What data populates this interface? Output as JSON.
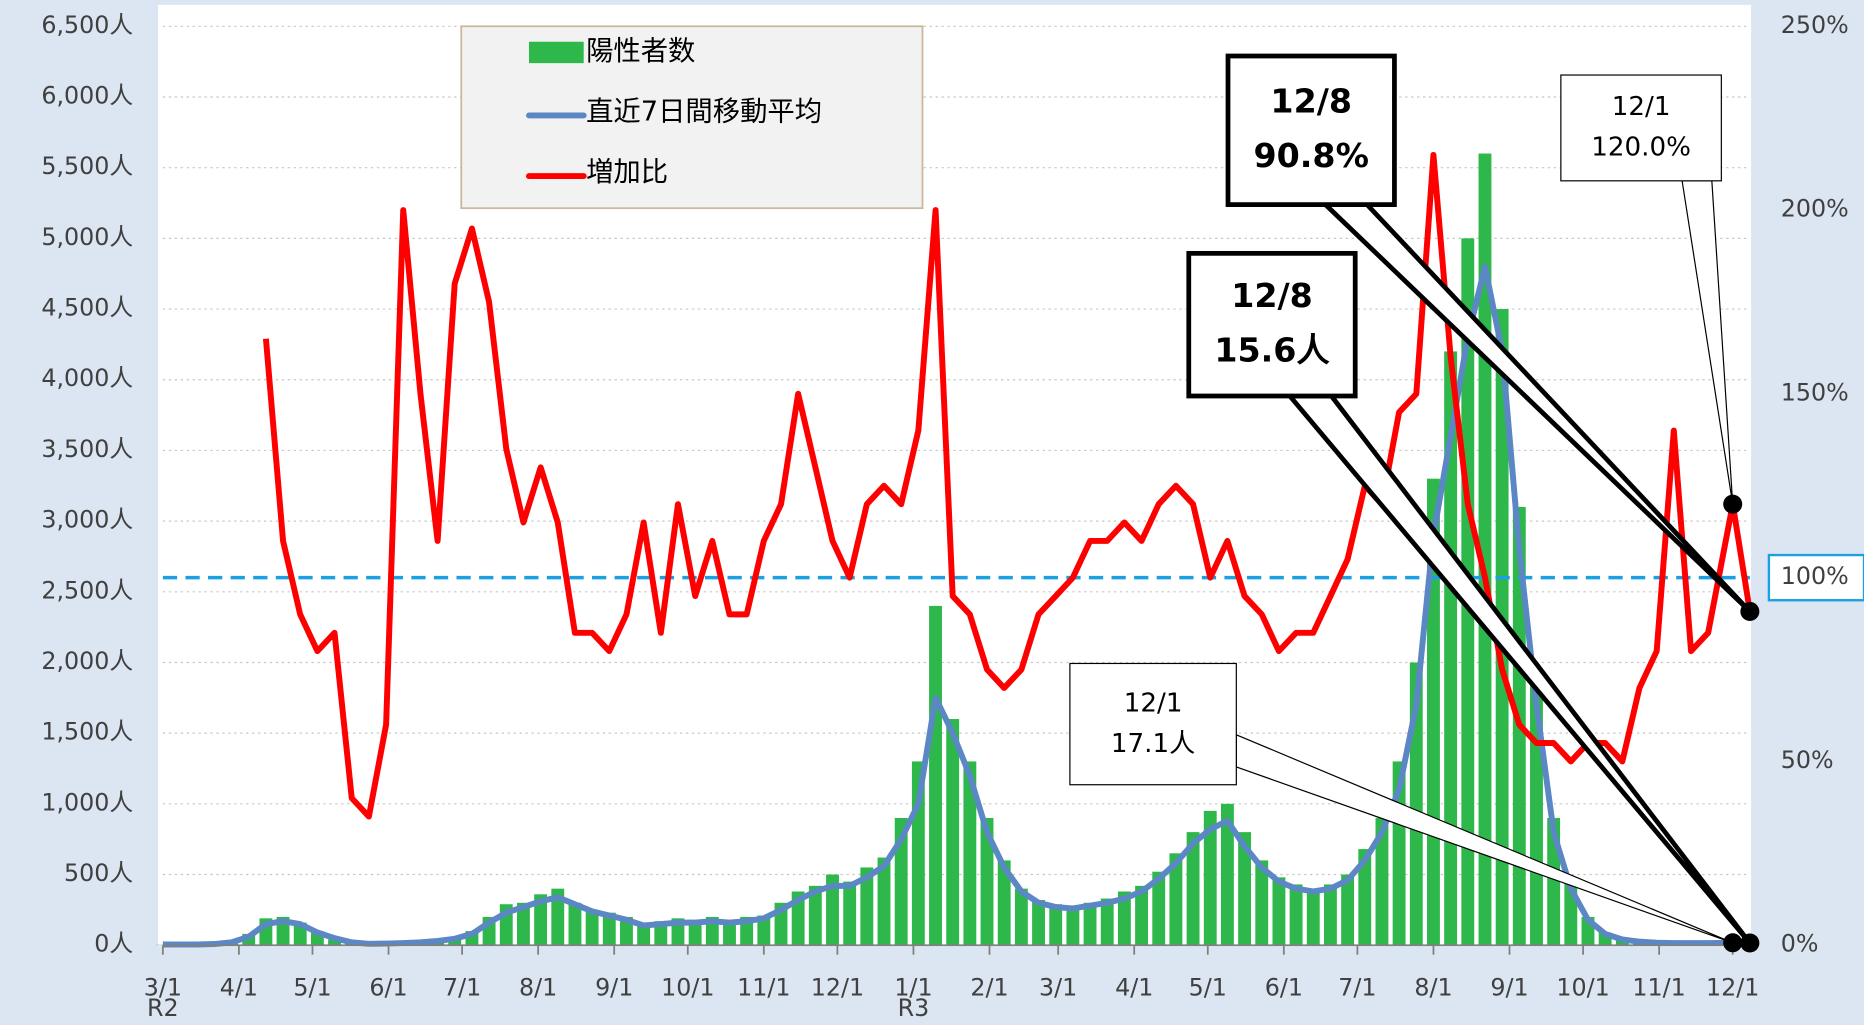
{
  "chart_data": {
    "type": "combo",
    "xlim": [
      0,
      647
    ],
    "xticks": [
      {
        "value": 0,
        "label": "3/1"
      },
      {
        "value": 31,
        "label": "4/1"
      },
      {
        "value": 61,
        "label": "5/1"
      },
      {
        "value": 92,
        "label": "6/1"
      },
      {
        "value": 122,
        "label": "7/1"
      },
      {
        "value": 153,
        "label": "8/1"
      },
      {
        "value": 184,
        "label": "9/1"
      },
      {
        "value": 214,
        "label": "10/1"
      },
      {
        "value": 245,
        "label": "11/1"
      },
      {
        "value": 275,
        "label": "12/1"
      },
      {
        "value": 306,
        "label": "1/1"
      },
      {
        "value": 337,
        "label": "2/1"
      },
      {
        "value": 365,
        "label": "3/1"
      },
      {
        "value": 396,
        "label": "4/1"
      },
      {
        "value": 426,
        "label": "5/1"
      },
      {
        "value": 457,
        "label": "6/1"
      },
      {
        "value": 487,
        "label": "7/1"
      },
      {
        "value": 518,
        "label": "8/1"
      },
      {
        "value": 549,
        "label": "9/1"
      },
      {
        "value": 579,
        "label": "10/1"
      },
      {
        "value": 610,
        "label": "11/1"
      },
      {
        "value": 640,
        "label": "12/1"
      }
    ],
    "era_labels": [
      {
        "value": 0,
        "label": "R2"
      },
      {
        "value": 306,
        "label": "R3"
      }
    ],
    "ylim": [
      0,
      6500
    ],
    "yticks": [
      {
        "value": 0,
        "label": "0人"
      },
      {
        "value": 500,
        "label": "500人"
      },
      {
        "value": 1000,
        "label": "1,000人"
      },
      {
        "value": 1500,
        "label": "1,500人"
      },
      {
        "value": 2000,
        "label": "2,000人"
      },
      {
        "value": 2500,
        "label": "2,500人"
      },
      {
        "value": 3000,
        "label": "3,000人"
      },
      {
        "value": 3500,
        "label": "3,500人"
      },
      {
        "value": 4000,
        "label": "4,000人"
      },
      {
        "value": 4500,
        "label": "4,500人"
      },
      {
        "value": 5000,
        "label": "5,000人"
      },
      {
        "value": 5500,
        "label": "5,500人"
      },
      {
        "value": 6000,
        "label": "6,000人"
      },
      {
        "value": 6500,
        "label": "6,500人"
      }
    ],
    "y2lim": [
      0,
      250
    ],
    "y2ticks": [
      {
        "value": 0,
        "label": "0%"
      },
      {
        "value": 50,
        "label": "50%"
      },
      {
        "value": 100,
        "label": "100%"
      },
      {
        "value": 150,
        "label": "150%"
      },
      {
        "value": 200,
        "label": "200%"
      },
      {
        "value": 250,
        "label": "250%"
      }
    ],
    "grid": true,
    "reference_line": {
      "axis": "y2",
      "value": 100,
      "color": "#1ba1e2"
    },
    "x": [
      0,
      7,
      14,
      21,
      28,
      35,
      42,
      49,
      56,
      63,
      70,
      77,
      84,
      91,
      98,
      105,
      112,
      119,
      126,
      133,
      140,
      147,
      154,
      161,
      168,
      175,
      182,
      189,
      196,
      203,
      210,
      217,
      224,
      231,
      238,
      245,
      252,
      259,
      266,
      273,
      280,
      287,
      294,
      301,
      308,
      315,
      322,
      329,
      336,
      343,
      350,
      357,
      364,
      371,
      378,
      385,
      392,
      399,
      406,
      413,
      420,
      427,
      434,
      441,
      448,
      455,
      462,
      469,
      476,
      483,
      490,
      497,
      504,
      511,
      518,
      525,
      532,
      539,
      546,
      553,
      560,
      567,
      574,
      581,
      588,
      595,
      602,
      609,
      616,
      623,
      630,
      640,
      647
    ],
    "series": [
      {
        "name": "陽性者数",
        "type": "bar",
        "color": "#2eb84b",
        "values": [
          3,
          5,
          6,
          10,
          25,
          80,
          190,
          200,
          160,
          100,
          40,
          15,
          10,
          20,
          20,
          25,
          35,
          60,
          100,
          200,
          290,
          300,
          360,
          400,
          300,
          250,
          230,
          200,
          150,
          170,
          190,
          180,
          200,
          170,
          200,
          210,
          300,
          380,
          420,
          500,
          450,
          550,
          620,
          900,
          1300,
          2400,
          1600,
          1300,
          900,
          600,
          400,
          320,
          290,
          280,
          300,
          330,
          380,
          420,
          520,
          650,
          800,
          950,
          1000,
          800,
          600,
          480,
          430,
          400,
          430,
          500,
          680,
          900,
          1300,
          2000,
          3300,
          4200,
          5000,
          5600,
          4500,
          3100,
          1900,
          900,
          450,
          200,
          90,
          45,
          28,
          20,
          18,
          14,
          16,
          18,
          16
        ]
      },
      {
        "name": "直近7日間移動平均",
        "type": "line",
        "color": "#5b87c5",
        "values": [
          5,
          5,
          5,
          8,
          20,
          60,
          150,
          170,
          150,
          90,
          50,
          20,
          10,
          12,
          15,
          20,
          30,
          45,
          80,
          160,
          230,
          270,
          310,
          340,
          290,
          240,
          210,
          180,
          140,
          150,
          160,
          160,
          170,
          160,
          170,
          190,
          250,
          320,
          380,
          420,
          420,
          480,
          560,
          750,
          1000,
          1750,
          1500,
          1200,
          800,
          550,
          380,
          300,
          270,
          260,
          280,
          300,
          330,
          380,
          470,
          580,
          720,
          820,
          880,
          700,
          550,
          450,
          400,
          380,
          400,
          460,
          600,
          800,
          1100,
          1700,
          2900,
          3600,
          4300,
          4800,
          4200,
          2800,
          1700,
          800,
          400,
          180,
          80,
          40,
          25,
          18,
          15,
          15,
          15,
          17.1,
          15.6
        ]
      },
      {
        "name": "増加比",
        "type": "line",
        "axis": "y2",
        "color": "#ff0000",
        "values": [
          null,
          null,
          null,
          null,
          null,
          null,
          165,
          110,
          90,
          80,
          85,
          40,
          35,
          60,
          200,
          150,
          110,
          180,
          195,
          175,
          135,
          115,
          130,
          115,
          85,
          85,
          80,
          90,
          115,
          85,
          120,
          95,
          110,
          90,
          90,
          110,
          120,
          150,
          130,
          110,
          100,
          120,
          125,
          120,
          140,
          200,
          95,
          90,
          75,
          70,
          75,
          90,
          95,
          100,
          110,
          110,
          115,
          110,
          120,
          125,
          120,
          100,
          110,
          95,
          90,
          80,
          85,
          85,
          95,
          105,
          125,
          120,
          145,
          150,
          215,
          160,
          120,
          100,
          75,
          60,
          55,
          55,
          50,
          55,
          55,
          50,
          70,
          80,
          140,
          80,
          85,
          120,
          90.8
        ]
      }
    ],
    "annotations": [
      {
        "lines": [
          "12/1",
          "17.1人"
        ]
      },
      {
        "lines": [
          "12/8",
          "15.6人"
        ],
        "bold": true
      },
      {
        "lines": [
          "12/8",
          "90.8%"
        ],
        "bold": true
      },
      {
        "lines": [
          "12/1",
          "120.0%"
        ]
      }
    ]
  }
}
